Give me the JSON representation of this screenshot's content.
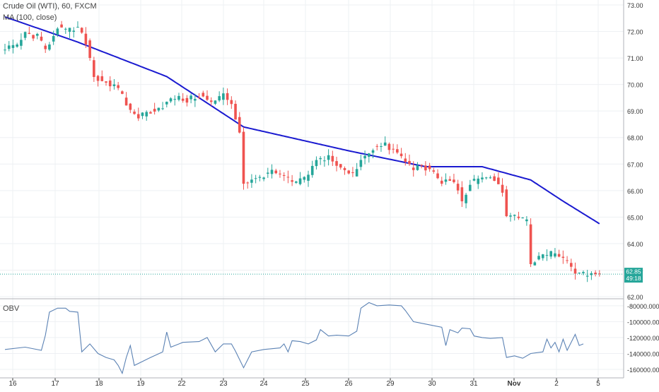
{
  "header": {
    "symbol_title": "Crude Oil (WTI), 60, FXCM",
    "ma_label": "MA (100, close)",
    "obv_label": "OBV"
  },
  "price_tag": {
    "price": "62.85",
    "countdown": "49:18"
  },
  "colors": {
    "up": "#26a69a",
    "down": "#ef5350",
    "ma": "#1a1ad0",
    "obv": "#5b82b4",
    "last_price_line": "#26a69a",
    "grid": "#eef0f3",
    "axis": "#333333"
  },
  "chart_data": [
    {
      "type": "candlestick",
      "title": "Crude Oil (WTI), 60, FXCM",
      "ylim": [
        62.0,
        73.0
      ],
      "y_ticks": [
        "73.00",
        "72.00",
        "71.00",
        "70.00",
        "69.00",
        "68.00",
        "67.00",
        "66.00",
        "65.00",
        "64.00",
        "63.00",
        "62.00"
      ],
      "x_ticks": [
        "16",
        "17",
        "18",
        "19",
        "22",
        "23",
        "24",
        "25",
        "26",
        "29",
        "30",
        "31",
        "Nov",
        "2",
        "5"
      ],
      "last_price": 62.85,
      "grid": true,
      "price_path": [
        [
          0,
          71.3
        ],
        [
          3,
          71.5
        ],
        [
          5,
          71.9
        ],
        [
          8,
          71.8
        ],
        [
          10,
          71.3
        ],
        [
          11,
          71.6
        ],
        [
          13,
          72.2
        ],
        [
          15,
          72.0
        ],
        [
          18,
          72.1
        ],
        [
          20,
          71.6
        ],
        [
          21,
          71.0
        ],
        [
          22,
          70.3
        ],
        [
          25,
          70.1
        ],
        [
          28,
          69.8
        ],
        [
          31,
          69.0
        ],
        [
          33,
          68.8
        ],
        [
          36,
          69.0
        ],
        [
          39,
          69.2
        ],
        [
          42,
          69.5
        ],
        [
          45,
          69.4
        ],
        [
          48,
          69.6
        ],
        [
          51,
          69.3
        ],
        [
          54,
          69.6
        ],
        [
          56,
          69.3
        ],
        [
          58,
          68.2
        ],
        [
          59,
          66.3
        ],
        [
          62,
          66.4
        ],
        [
          65,
          66.7
        ],
        [
          68,
          66.6
        ],
        [
          71,
          66.3
        ],
        [
          74,
          66.4
        ],
        [
          77,
          67.1
        ],
        [
          80,
          67.3
        ],
        [
          83,
          66.8
        ],
        [
          86,
          66.6
        ],
        [
          88,
          67.2
        ],
        [
          91,
          67.6
        ],
        [
          94,
          67.7
        ],
        [
          97,
          67.4
        ],
        [
          99,
          67.1
        ],
        [
          101,
          66.8
        ],
        [
          103,
          67.0
        ],
        [
          106,
          66.6
        ],
        [
          108,
          66.3
        ],
        [
          110,
          66.4
        ],
        [
          112,
          66.1
        ],
        [
          113,
          65.5
        ],
        [
          115,
          66.3
        ],
        [
          118,
          66.4
        ],
        [
          120,
          66.6
        ],
        [
          123,
          66.0
        ],
        [
          124,
          65.0
        ],
        [
          127,
          65.0
        ],
        [
          129,
          64.8
        ],
        [
          130,
          63.2
        ],
        [
          133,
          63.6
        ],
        [
          136,
          63.6
        ],
        [
          139,
          63.3
        ],
        [
          142,
          62.8
        ],
        [
          145,
          62.9
        ],
        [
          147,
          62.85
        ]
      ],
      "ma_path": [
        [
          0,
          72.55
        ],
        [
          18,
          71.6
        ],
        [
          40,
          70.3
        ],
        [
          59,
          68.4
        ],
        [
          85,
          67.5
        ],
        [
          104,
          66.9
        ],
        [
          118,
          66.9
        ],
        [
          130,
          66.4
        ],
        [
          138,
          65.6
        ],
        [
          147,
          64.75
        ]
      ]
    },
    {
      "type": "line",
      "name": "OBV",
      "ylim": [
        -168000,
        -73000
      ],
      "y_ticks": [
        "-80000.0000",
        "-100000.0000",
        "-120000.0000",
        "-140000.0000",
        "-160000.0000"
      ],
      "obv_path": [
        [
          0,
          -135000
        ],
        [
          5,
          -132000
        ],
        [
          9,
          -136000
        ],
        [
          10,
          -117000
        ],
        [
          11,
          -88000
        ],
        [
          13,
          -83000
        ],
        [
          15,
          -83000
        ],
        [
          16,
          -87000
        ],
        [
          18,
          -88000
        ],
        [
          19,
          -138000
        ],
        [
          21,
          -128000
        ],
        [
          23,
          -140000
        ],
        [
          25,
          -145000
        ],
        [
          27,
          -148000
        ],
        [
          28,
          -155000
        ],
        [
          29,
          -165000
        ],
        [
          30,
          -145000
        ],
        [
          31,
          -130000
        ],
        [
          32,
          -155000
        ],
        [
          34,
          -150000
        ],
        [
          36,
          -145000
        ],
        [
          39,
          -138000
        ],
        [
          40,
          -113000
        ],
        [
          41,
          -132000
        ],
        [
          44,
          -126000
        ],
        [
          48,
          -125000
        ],
        [
          50,
          -120000
        ],
        [
          52,
          -138000
        ],
        [
          54,
          -128000
        ],
        [
          56,
          -128000
        ],
        [
          57,
          -137000
        ],
        [
          59,
          -158000
        ],
        [
          61,
          -138000
        ],
        [
          64,
          -135000
        ],
        [
          68,
          -133000
        ],
        [
          69,
          -128000
        ],
        [
          70,
          -138000
        ],
        [
          71,
          -124000
        ],
        [
          73,
          -125000
        ],
        [
          75,
          -128000
        ],
        [
          77,
          -123000
        ],
        [
          78,
          -110000
        ],
        [
          80,
          -118000
        ],
        [
          82,
          -117000
        ],
        [
          85,
          -118000
        ],
        [
          87,
          -112000
        ],
        [
          88,
          -83000
        ],
        [
          90,
          -76000
        ],
        [
          92,
          -80000
        ],
        [
          95,
          -79000
        ],
        [
          98,
          -80000
        ],
        [
          99,
          -86000
        ],
        [
          101,
          -100000
        ],
        [
          103,
          -102000
        ],
        [
          105,
          -104000
        ],
        [
          108,
          -107000
        ],
        [
          109,
          -130000
        ],
        [
          110,
          -110000
        ],
        [
          112,
          -114000
        ],
        [
          113,
          -108000
        ],
        [
          115,
          -109000
        ],
        [
          116,
          -118000
        ],
        [
          118,
          -120000
        ],
        [
          120,
          -121000
        ],
        [
          123,
          -120000
        ],
        [
          124,
          -145000
        ],
        [
          126,
          -143000
        ],
        [
          128,
          -146000
        ],
        [
          130,
          -140000
        ],
        [
          133,
          -138000
        ],
        [
          134,
          -122000
        ],
        [
          135,
          -133000
        ],
        [
          136,
          -126000
        ],
        [
          137,
          -138000
        ],
        [
          138,
          -122000
        ],
        [
          139,
          -136000
        ],
        [
          141,
          -116000
        ],
        [
          142,
          -130000
        ],
        [
          143,
          -128000
        ]
      ]
    }
  ]
}
